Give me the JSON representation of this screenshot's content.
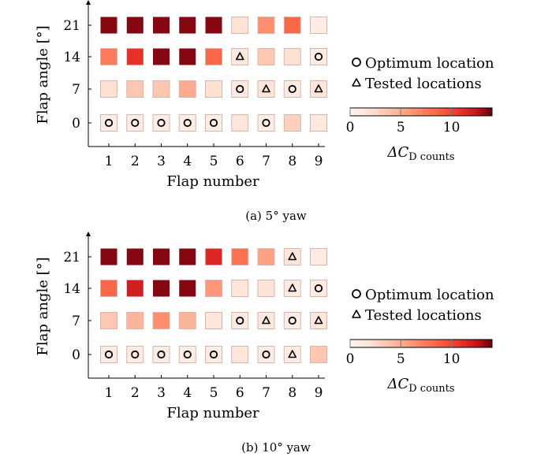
{
  "chart_data": [
    {
      "type": "heatmap",
      "caption": "(a) 5° yaw",
      "xlabel": "Flap number",
      "ylabel": "Flap angle [°]",
      "x_ticks": [
        "1",
        "2",
        "3",
        "4",
        "5",
        "6",
        "7",
        "8",
        "9"
      ],
      "y_ticks": [
        "0",
        "7",
        "14",
        "21"
      ],
      "cells": [
        {
          "flap": 1,
          "angle": 21,
          "value": 13.5
        },
        {
          "flap": 2,
          "angle": 21,
          "value": 13.5
        },
        {
          "flap": 3,
          "angle": 21,
          "value": 13.5
        },
        {
          "flap": 4,
          "angle": 21,
          "value": 13.5
        },
        {
          "flap": 5,
          "angle": 21,
          "value": 13.5
        },
        {
          "flap": 6,
          "angle": 21,
          "value": 1.8
        },
        {
          "flap": 7,
          "angle": 21,
          "value": 6.5
        },
        {
          "flap": 8,
          "angle": 21,
          "value": 8.5
        },
        {
          "flap": 9,
          "angle": 21,
          "value": 0.8
        },
        {
          "flap": 1,
          "angle": 14,
          "value": 7.5
        },
        {
          "flap": 2,
          "angle": 14,
          "value": 11.0
        },
        {
          "flap": 3,
          "angle": 14,
          "value": 13.5
        },
        {
          "flap": 4,
          "angle": 14,
          "value": 13.5
        },
        {
          "flap": 5,
          "angle": 14,
          "value": 8.5
        },
        {
          "flap": 6,
          "angle": 14,
          "value": 1.2,
          "marker": "triangle"
        },
        {
          "flap": 7,
          "angle": 14,
          "value": 3.5
        },
        {
          "flap": 8,
          "angle": 14,
          "value": 2.0
        },
        {
          "flap": 9,
          "angle": 14,
          "value": 1.0,
          "marker": "circle"
        },
        {
          "flap": 1,
          "angle": 7,
          "value": 2.0
        },
        {
          "flap": 2,
          "angle": 7,
          "value": 3.5
        },
        {
          "flap": 3,
          "angle": 7,
          "value": 3.5
        },
        {
          "flap": 4,
          "angle": 7,
          "value": 5.0
        },
        {
          "flap": 5,
          "angle": 7,
          "value": 2.0
        },
        {
          "flap": 6,
          "angle": 7,
          "value": 1.0,
          "marker": "circle"
        },
        {
          "flap": 7,
          "angle": 7,
          "value": 1.5,
          "marker": "triangle"
        },
        {
          "flap": 8,
          "angle": 7,
          "value": 1.0,
          "marker": "circle"
        },
        {
          "flap": 9,
          "angle": 7,
          "value": 1.5,
          "marker": "triangle"
        },
        {
          "flap": 1,
          "angle": 0,
          "value": 0.8,
          "marker": "circle"
        },
        {
          "flap": 2,
          "angle": 0,
          "value": 0.8,
          "marker": "circle"
        },
        {
          "flap": 3,
          "angle": 0,
          "value": 0.8,
          "marker": "circle"
        },
        {
          "flap": 4,
          "angle": 0,
          "value": 0.8,
          "marker": "circle"
        },
        {
          "flap": 5,
          "angle": 0,
          "value": 0.8,
          "marker": "circle"
        },
        {
          "flap": 6,
          "angle": 0,
          "value": 1.5
        },
        {
          "flap": 7,
          "angle": 0,
          "value": 0.8,
          "marker": "circle"
        },
        {
          "flap": 8,
          "angle": 0,
          "value": 3.0
        },
        {
          "flap": 9,
          "angle": 0,
          "value": 1.2
        }
      ],
      "legend": {
        "circle": "Optimum location",
        "triangle": "Tested locations"
      },
      "colorbar": {
        "label": "ΔC",
        "label_sub": "D counts",
        "ticks": [
          0,
          5,
          10
        ],
        "range": [
          0,
          14
        ]
      }
    },
    {
      "type": "heatmap",
      "caption": "(b) 10° yaw",
      "xlabel": "Flap number",
      "ylabel": "Flap angle [°]",
      "x_ticks": [
        "1",
        "2",
        "3",
        "4",
        "5",
        "6",
        "7",
        "8",
        "9"
      ],
      "y_ticks": [
        "0",
        "7",
        "14",
        "21"
      ],
      "cells": [
        {
          "flap": 1,
          "angle": 21,
          "value": 13.5
        },
        {
          "flap": 2,
          "angle": 21,
          "value": 13.5
        },
        {
          "flap": 3,
          "angle": 21,
          "value": 13.5
        },
        {
          "flap": 4,
          "angle": 21,
          "value": 13.5
        },
        {
          "flap": 5,
          "angle": 21,
          "value": 11.5
        },
        {
          "flap": 6,
          "angle": 21,
          "value": 8.0
        },
        {
          "flap": 7,
          "angle": 21,
          "value": 5.5
        },
        {
          "flap": 8,
          "angle": 21,
          "value": 1.5,
          "marker": "triangle"
        },
        {
          "flap": 9,
          "angle": 21,
          "value": 1.0
        },
        {
          "flap": 1,
          "angle": 14,
          "value": 8.5
        },
        {
          "flap": 2,
          "angle": 14,
          "value": 12.0
        },
        {
          "flap": 3,
          "angle": 14,
          "value": 13.5
        },
        {
          "flap": 4,
          "angle": 14,
          "value": 13.5
        },
        {
          "flap": 5,
          "angle": 14,
          "value": 6.0
        },
        {
          "flap": 6,
          "angle": 14,
          "value": 1.5
        },
        {
          "flap": 7,
          "angle": 14,
          "value": 1.8
        },
        {
          "flap": 8,
          "angle": 14,
          "value": 1.0,
          "marker": "triangle"
        },
        {
          "flap": 9,
          "angle": 14,
          "value": 1.0,
          "marker": "circle"
        },
        {
          "flap": 1,
          "angle": 7,
          "value": 3.5
        },
        {
          "flap": 2,
          "angle": 7,
          "value": 4.5
        },
        {
          "flap": 3,
          "angle": 7,
          "value": 6.5
        },
        {
          "flap": 4,
          "angle": 7,
          "value": 4.5
        },
        {
          "flap": 5,
          "angle": 7,
          "value": 1.5
        },
        {
          "flap": 6,
          "angle": 7,
          "value": 1.0,
          "marker": "circle"
        },
        {
          "flap": 7,
          "angle": 7,
          "value": 1.2,
          "marker": "triangle"
        },
        {
          "flap": 8,
          "angle": 7,
          "value": 0.8,
          "marker": "circle"
        },
        {
          "flap": 9,
          "angle": 7,
          "value": 1.5,
          "marker": "triangle"
        },
        {
          "flap": 1,
          "angle": 0,
          "value": 0.8,
          "marker": "circle"
        },
        {
          "flap": 2,
          "angle": 0,
          "value": 0.8,
          "marker": "circle"
        },
        {
          "flap": 3,
          "angle": 0,
          "value": 0.8,
          "marker": "circle"
        },
        {
          "flap": 4,
          "angle": 0,
          "value": 0.8,
          "marker": "circle"
        },
        {
          "flap": 5,
          "angle": 0,
          "value": 0.8,
          "marker": "circle"
        },
        {
          "flap": 6,
          "angle": 0,
          "value": 1.5
        },
        {
          "flap": 7,
          "angle": 0,
          "value": 0.8,
          "marker": "circle"
        },
        {
          "flap": 8,
          "angle": 0,
          "value": 1.0,
          "marker": "triangle"
        },
        {
          "flap": 9,
          "angle": 0,
          "value": 3.5
        }
      ],
      "legend": {
        "circle": "Optimum location",
        "triangle": "Tested locations"
      },
      "colorbar": {
        "label": "ΔC",
        "label_sub": "D counts",
        "ticks": [
          0,
          5,
          10
        ],
        "range": [
          0,
          14
        ]
      }
    }
  ]
}
